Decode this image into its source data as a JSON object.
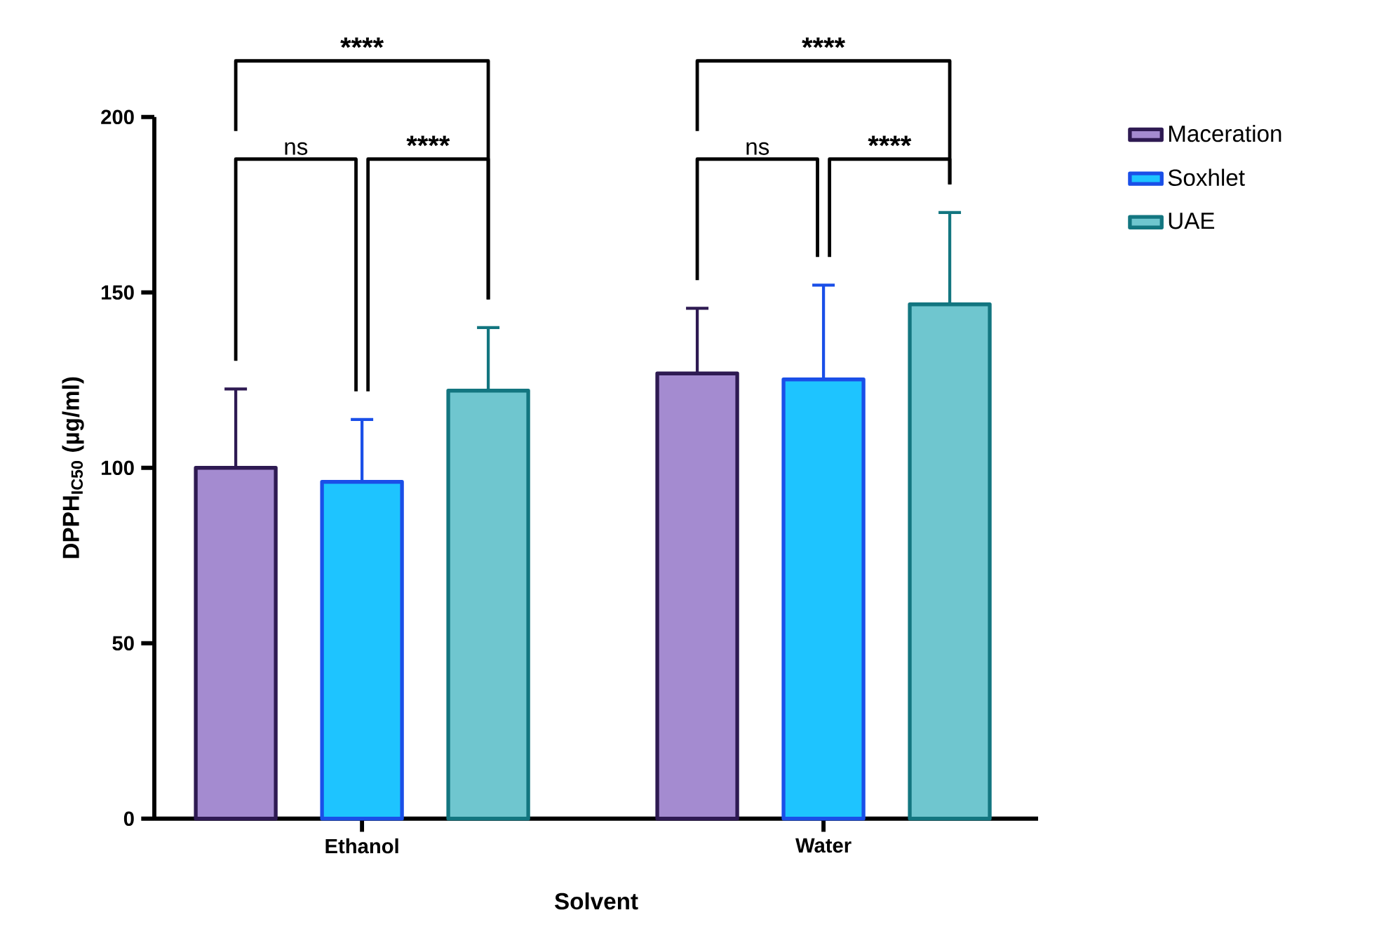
{
  "chart_data": {
    "type": "bar",
    "xlabel": "Solvent",
    "ylabel": "DPPH$_{IC50}$ (µg/ml)",
    "categories": [
      "Ethanol",
      "Water"
    ],
    "series": [
      {
        "name": "Maceration",
        "color": "#a48bd0",
        "values": [
          100,
          126.9
        ],
        "errors": [
          [
            100,
            122.5
          ],
          [
            126.9,
            145.5
          ]
        ]
      },
      {
        "name": "Soxhlet",
        "color": "#1ec4ff",
        "values": [
          96,
          125.2
        ],
        "errors": [
          [
            96,
            113.8
          ],
          [
            125.2,
            152.1
          ]
        ]
      },
      {
        "name": "UAE",
        "color": "#6fc6cf",
        "values": [
          122,
          146.6
        ],
        "errors": [
          [
            122,
            140
          ],
          [
            146.6,
            172.8
          ]
        ]
      }
    ],
    "ylim": [
      0,
      200
    ],
    "yticks": [
      0,
      50,
      100,
      150,
      200
    ],
    "grid": false,
    "legend": "right",
    "annotations": [
      "****",
      "ns",
      "****",
      "****",
      "ns",
      "****"
    ]
  }
}
